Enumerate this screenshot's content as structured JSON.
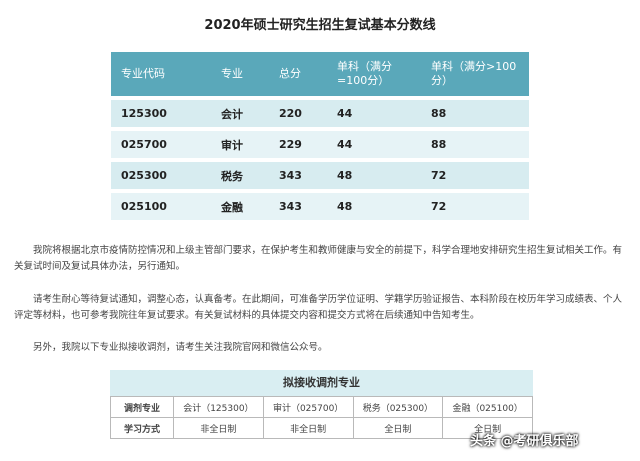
{
  "title": "2020年硕士研究生招生复试基本分数线",
  "table": {
    "headers": [
      "专业代码",
      "专业",
      "总分",
      "单科（满分=100分）",
      "单科（满分>100分）"
    ],
    "rows": [
      [
        "125300",
        "会计",
        "220",
        "44",
        "88"
      ],
      [
        "025700",
        "审计",
        "229",
        "44",
        "88"
      ],
      [
        "025300",
        "税务",
        "343",
        "48",
        "72"
      ],
      [
        "025100",
        "金融",
        "343",
        "48",
        "72"
      ]
    ]
  },
  "paragraphs": [
    "我院将根据北京市疫情防控情况和上级主管部门要求，在保护考生和教师健康与安全的前提下，科学合理地安排研究生招生复试相关工作。有关复试时间及复试具体办法，另行通知。",
    "请考生耐心等待复试通知，调整心态，认真备考。在此期间，可准备学历学位证明、学籍学历验证报告、本科阶段在校历年学习成绩表、个人评定等材料，也可参考我院往年复试要求。有关复试材料的具体提交内容和提交方式将在后续通知中告知考生。",
    "另外，我院以下专业拟接收调剂，请考生关注我院官网和微信公众号。"
  ],
  "adjust": {
    "title": "拟接收调剂专业",
    "row1_label": "调剂专业",
    "row1": [
      "会计（125300）",
      "审计（025700）",
      "税务（025300）",
      "金融（025100）"
    ],
    "row2_label": "学习方式",
    "row2": [
      "非全日制",
      "非全日制",
      "全日制",
      "全日制"
    ]
  },
  "watermark": "头条 @考研俱乐部"
}
